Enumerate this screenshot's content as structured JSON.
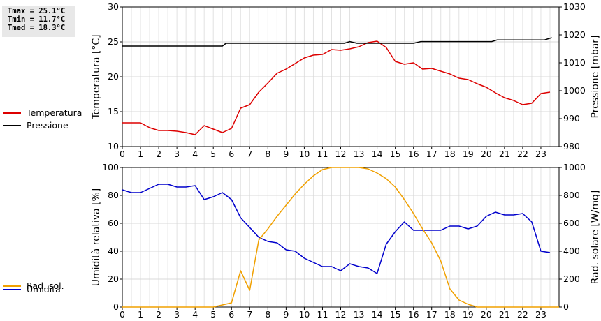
{
  "stats": {
    "tmax": "Tmax = 25.1°C",
    "tmin": "Tmin = 11.7°C",
    "tmed": "Tmed = 18.3°C"
  },
  "chart_data": [
    {
      "type": "line",
      "title": "",
      "xlabel": "",
      "ylabel_left": "Temperatura [°C]",
      "ylabel_right": "Pressione [mbar]",
      "xlim": [
        0,
        24
      ],
      "x_ticks": [
        "0",
        "1",
        "2",
        "3",
        "4",
        "5",
        "6",
        "7",
        "8",
        "9",
        "10",
        "11",
        "12",
        "13",
        "14",
        "15",
        "16",
        "17",
        "18",
        "19",
        "20",
        "21",
        "22",
        "23"
      ],
      "ylim_left": [
        10,
        30
      ],
      "y_ticks_left": [
        "10",
        "15",
        "20",
        "25",
        "30"
      ],
      "ylim_right": [
        980,
        1030
      ],
      "y_ticks_right": [
        "980",
        "990",
        "1000",
        "1010",
        "1020",
        "1030"
      ],
      "grid": true,
      "legend_position": "left-outside",
      "series": [
        {
          "name": "Temperatura",
          "axis": "left",
          "color": "#dd0000",
          "points": [
            [
              0,
              13.4
            ],
            [
              0.5,
              13.4
            ],
            [
              1,
              13.4
            ],
            [
              1.5,
              12.7
            ],
            [
              2,
              12.3
            ],
            [
              2.5,
              12.3
            ],
            [
              3,
              12.2
            ],
            [
              3.5,
              12.0
            ],
            [
              4,
              11.7
            ],
            [
              4.5,
              13.0
            ],
            [
              5,
              12.5
            ],
            [
              5.5,
              12.0
            ],
            [
              6,
              12.6
            ],
            [
              6.5,
              15.5
            ],
            [
              7,
              16.0
            ],
            [
              7.5,
              17.8
            ],
            [
              8,
              19.1
            ],
            [
              8.5,
              20.5
            ],
            [
              9,
              21.1
            ],
            [
              9.5,
              21.9
            ],
            [
              10,
              22.7
            ],
            [
              10.5,
              23.1
            ],
            [
              11,
              23.2
            ],
            [
              11.5,
              23.9
            ],
            [
              12,
              23.8
            ],
            [
              12.5,
              24.0
            ],
            [
              13,
              24.3
            ],
            [
              13.5,
              24.9
            ],
            [
              14,
              25.1
            ],
            [
              14.5,
              24.2
            ],
            [
              15,
              22.2
            ],
            [
              15.5,
              21.8
            ],
            [
              16,
              22.0
            ],
            [
              16.5,
              21.1
            ],
            [
              17,
              21.2
            ],
            [
              17.5,
              20.8
            ],
            [
              18,
              20.4
            ],
            [
              18.5,
              19.8
            ],
            [
              19,
              19.6
            ],
            [
              19.5,
              19.0
            ],
            [
              20,
              18.5
            ],
            [
              20.5,
              17.7
            ],
            [
              21,
              17.0
            ],
            [
              21.5,
              16.6
            ],
            [
              22,
              16.0
            ],
            [
              22.5,
              16.2
            ],
            [
              23,
              17.6
            ],
            [
              23.5,
              17.8
            ]
          ]
        },
        {
          "name": "Pressione",
          "axis": "right",
          "color": "#000000",
          "points": [
            [
              0,
              1016
            ],
            [
              5.5,
              1016
            ],
            [
              5.7,
              1017
            ],
            [
              12.2,
              1017
            ],
            [
              12.5,
              1017.6
            ],
            [
              12.9,
              1017
            ],
            [
              16,
              1017
            ],
            [
              16.4,
              1017.6
            ],
            [
              20.3,
              1017.6
            ],
            [
              20.6,
              1018.2
            ],
            [
              23.2,
              1018.2
            ],
            [
              23.6,
              1019
            ]
          ]
        }
      ]
    },
    {
      "type": "line",
      "title": "",
      "xlabel": "",
      "ylabel_left": "Umidità relativa [%]",
      "ylabel_right": "Rad. solare [W/mq]",
      "xlim": [
        0,
        24
      ],
      "x_ticks": [
        "0",
        "1",
        "2",
        "3",
        "4",
        "5",
        "6",
        "7",
        "8",
        "9",
        "10",
        "11",
        "12",
        "13",
        "14",
        "15",
        "16",
        "17",
        "18",
        "19",
        "20",
        "21",
        "22",
        "23"
      ],
      "ylim_left": [
        0,
        100
      ],
      "y_ticks_left": [
        "0",
        "20",
        "40",
        "60",
        "80",
        "100"
      ],
      "ylim_right": [
        0,
        1000
      ],
      "y_ticks_right": [
        "0",
        "200",
        "400",
        "600",
        "800",
        "1000"
      ],
      "grid": true,
      "legend_position": "left-outside",
      "series": [
        {
          "name": "Umidità",
          "axis": "left",
          "color": "#0000cc",
          "points": [
            [
              0,
              84
            ],
            [
              0.5,
              82
            ],
            [
              1,
              82
            ],
            [
              1.5,
              85
            ],
            [
              2,
              88
            ],
            [
              2.5,
              88
            ],
            [
              3,
              86
            ],
            [
              3.5,
              86
            ],
            [
              4,
              87
            ],
            [
              4.5,
              77
            ],
            [
              5,
              79
            ],
            [
              5.5,
              82
            ],
            [
              6,
              77
            ],
            [
              6.5,
              64
            ],
            [
              7,
              57
            ],
            [
              7.5,
              50
            ],
            [
              8,
              47
            ],
            [
              8.5,
              46
            ],
            [
              9,
              41
            ],
            [
              9.5,
              40
            ],
            [
              10,
              35
            ],
            [
              10.5,
              32
            ],
            [
              11,
              29
            ],
            [
              11.5,
              29
            ],
            [
              12,
              26
            ],
            [
              12.5,
              31
            ],
            [
              13,
              29
            ],
            [
              13.5,
              28
            ],
            [
              14,
              24
            ],
            [
              14.5,
              45
            ],
            [
              15,
              54
            ],
            [
              15.5,
              61
            ],
            [
              16,
              55
            ],
            [
              16.5,
              55
            ],
            [
              17,
              55
            ],
            [
              17.5,
              55
            ],
            [
              18,
              58
            ],
            [
              18.5,
              58
            ],
            [
              19,
              56
            ],
            [
              19.5,
              58
            ],
            [
              20,
              65
            ],
            [
              20.5,
              68
            ],
            [
              21,
              66
            ],
            [
              21.5,
              66
            ],
            [
              22,
              67
            ],
            [
              22.5,
              61
            ],
            [
              23,
              40
            ],
            [
              23.5,
              39
            ]
          ]
        },
        {
          "name": "Rad. sol.",
          "axis": "right",
          "color": "#f0a000",
          "points": [
            [
              0,
              0
            ],
            [
              5,
              0
            ],
            [
              5.5,
              15
            ],
            [
              6,
              30
            ],
            [
              6.5,
              260
            ],
            [
              7,
              120
            ],
            [
              7.5,
              480
            ],
            [
              8,
              560
            ],
            [
              8.5,
              650
            ],
            [
              9,
              730
            ],
            [
              9.5,
              810
            ],
            [
              10,
              880
            ],
            [
              10.5,
              940
            ],
            [
              11,
              985
            ],
            [
              11.5,
              1000
            ],
            [
              12,
              1000
            ],
            [
              12.5,
              1000
            ],
            [
              13,
              1000
            ],
            [
              13.5,
              990
            ],
            [
              14,
              960
            ],
            [
              14.5,
              920
            ],
            [
              15,
              860
            ],
            [
              15.5,
              770
            ],
            [
              16,
              670
            ],
            [
              16.5,
              560
            ],
            [
              17,
              460
            ],
            [
              17.5,
              330
            ],
            [
              18,
              130
            ],
            [
              18.5,
              50
            ],
            [
              19,
              20
            ],
            [
              19.5,
              0
            ],
            [
              24,
              0
            ]
          ]
        }
      ]
    }
  ]
}
